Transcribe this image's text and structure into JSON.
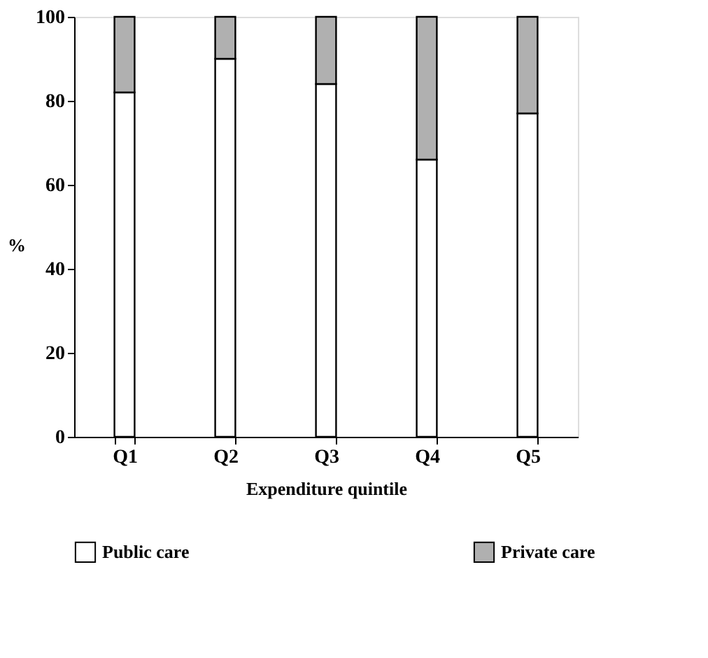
{
  "chart_data": {
    "type": "bar",
    "stacked": true,
    "xlabel": "Expenditure quintile",
    "ylabel": "%",
    "categories": [
      "Q1",
      "Q2",
      "Q3",
      "Q4",
      "Q5"
    ],
    "series": [
      {
        "name": "Public care",
        "color": "#ffffff",
        "values": [
          82,
          90,
          84,
          66,
          77
        ]
      },
      {
        "name": "Private care",
        "color": "#b0b0b0",
        "values": [
          18,
          10,
          16,
          34,
          23
        ]
      }
    ],
    "ylim": [
      0,
      100
    ],
    "yticks": [
      0,
      20,
      40,
      60,
      80,
      100
    ],
    "grid": false,
    "legend": "bottom"
  }
}
